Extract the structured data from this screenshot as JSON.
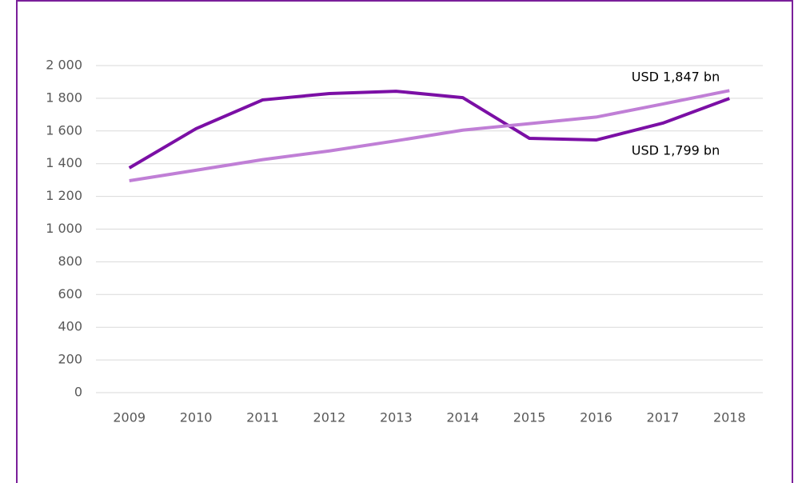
{
  "chart_data": {
    "type": "line",
    "categories": [
      "2009",
      "2010",
      "2011",
      "2012",
      "2013",
      "2014",
      "2015",
      "2016",
      "2017",
      "2018"
    ],
    "series": [
      {
        "color": "#7b0fa5",
        "values": [
          1374,
          1614,
          1790,
          1829,
          1843,
          1804,
          1555,
          1545,
          1648,
          1799
        ]
      },
      {
        "color": "#c07fd6",
        "values": [
          1296,
          1360,
          1425,
          1478,
          1540,
          1605,
          1645,
          1685,
          1765,
          1847
        ]
      }
    ],
    "annotations": [
      "USD 1,847 bn",
      "USD 1,799 bn"
    ],
    "ylim": [
      0,
      2000
    ],
    "yticks": [
      0,
      200,
      400,
      600,
      800,
      {
        "value": 1000,
        "label": "1 000"
      },
      {
        "value": 1200,
        "label": "1 200"
      },
      {
        "value": 1400,
        "label": "1 400"
      },
      {
        "value": 1600,
        "label": "1 600"
      },
      {
        "value": 1800,
        "label": "1 800"
      },
      {
        "value": 2000,
        "label": "2 000"
      }
    ],
    "grid": true
  }
}
